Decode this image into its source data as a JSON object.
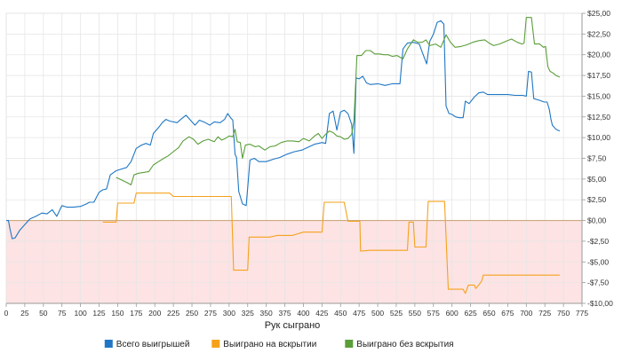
{
  "chart_data": {
    "type": "line",
    "title": "",
    "xlabel": "Рук сыграно",
    "ylabel": "",
    "xlim": [
      0,
      775
    ],
    "ylim": [
      -10,
      25
    ],
    "x_ticks": [
      "0",
      "25",
      "50",
      "75",
      "100",
      "125",
      "150",
      "175",
      "200",
      "225",
      "250",
      "275",
      "300",
      "325",
      "350",
      "375",
      "400",
      "425",
      "450",
      "475",
      "500",
      "525",
      "550",
      "575",
      "600",
      "625",
      "650",
      "675",
      "700",
      "725",
      "750",
      "775"
    ],
    "y_ticks": [
      {
        "value": 25,
        "label": "$25,00"
      },
      {
        "value": 22.5,
        "label": "$22,50"
      },
      {
        "value": 20,
        "label": "$20,00"
      },
      {
        "value": 17.5,
        "label": "$17,50"
      },
      {
        "value": 15,
        "label": "$15,00"
      },
      {
        "value": 12.5,
        "label": "$12,50"
      },
      {
        "value": 10,
        "label": "$10,00"
      },
      {
        "value": 7.5,
        "label": "$7,50"
      },
      {
        "value": 5,
        "label": "$5,00"
      },
      {
        "value": 2.5,
        "label": "$2,50"
      },
      {
        "value": 0,
        "label": "$0,00"
      },
      {
        "value": -2.5,
        "label": "-$2,50"
      },
      {
        "value": -5,
        "label": "-$5,00"
      },
      {
        "value": -7.5,
        "label": "-$7,50"
      },
      {
        "value": -10,
        "label": "-$10,00"
      }
    ],
    "grid": true,
    "negative_band": true,
    "legend_position": "bottom-center",
    "series": [
      {
        "name": "Всего выигрышей",
        "color": "#1f77c4",
        "points": [
          [
            0,
            0
          ],
          [
            3,
            0
          ],
          [
            5,
            -1
          ],
          [
            8,
            -2.2
          ],
          [
            12,
            -2.1
          ],
          [
            18,
            -1.2
          ],
          [
            25,
            -0.5
          ],
          [
            32,
            0.2
          ],
          [
            40,
            0.5
          ],
          [
            48,
            0.9
          ],
          [
            55,
            0.8
          ],
          [
            62,
            1.3
          ],
          [
            68,
            0.5
          ],
          [
            75,
            1.8
          ],
          [
            82,
            1.6
          ],
          [
            90,
            1.6
          ],
          [
            100,
            1.7
          ],
          [
            108,
            2
          ],
          [
            112,
            2.2
          ],
          [
            118,
            2.2
          ],
          [
            125,
            3.4
          ],
          [
            130,
            3.7
          ],
          [
            135,
            3.8
          ],
          [
            140,
            5.5
          ],
          [
            148,
            6
          ],
          [
            155,
            6.2
          ],
          [
            162,
            6.4
          ],
          [
            168,
            7.1
          ],
          [
            175,
            8.7
          ],
          [
            182,
            9.1
          ],
          [
            188,
            9.3
          ],
          [
            194,
            9.1
          ],
          [
            198,
            10.5
          ],
          [
            205,
            11.2
          ],
          [
            210,
            11.8
          ],
          [
            215,
            12.2
          ],
          [
            220,
            12
          ],
          [
            230,
            11.8
          ],
          [
            235,
            12.2
          ],
          [
            242,
            12.7
          ],
          [
            248,
            12.1
          ],
          [
            254,
            11.5
          ],
          [
            260,
            12.1
          ],
          [
            268,
            11.8
          ],
          [
            274,
            11.5
          ],
          [
            280,
            11.9
          ],
          [
            288,
            11.8
          ],
          [
            294,
            12.2
          ],
          [
            298,
            12.9
          ],
          [
            302,
            12.4
          ],
          [
            305,
            12.1
          ],
          [
            308,
            8
          ],
          [
            310,
            7.6
          ],
          [
            313,
            3.5
          ],
          [
            318,
            2
          ],
          [
            323,
            1.8
          ],
          [
            328,
            7.3
          ],
          [
            334,
            7.5
          ],
          [
            340,
            7.1
          ],
          [
            350,
            7.1
          ],
          [
            360,
            7.4
          ],
          [
            368,
            7.6
          ],
          [
            378,
            8
          ],
          [
            388,
            8.3
          ],
          [
            398,
            8.5
          ],
          [
            408,
            8.9
          ],
          [
            415,
            9.2
          ],
          [
            420,
            9.3
          ],
          [
            425,
            9.4
          ],
          [
            430,
            9.3
          ],
          [
            435,
            12.9
          ],
          [
            440,
            13.2
          ],
          [
            445,
            10.9
          ],
          [
            450,
            13.1
          ],
          [
            455,
            13.3
          ],
          [
            460,
            12.9
          ],
          [
            465,
            11.6
          ],
          [
            468,
            8.1
          ],
          [
            471,
            17.2
          ],
          [
            475,
            17.1
          ],
          [
            480,
            17.4
          ],
          [
            485,
            16.6
          ],
          [
            490,
            16.4
          ],
          [
            500,
            16.5
          ],
          [
            510,
            16.3
          ],
          [
            520,
            16.5
          ],
          [
            530,
            16.5
          ],
          [
            534,
            20.7
          ],
          [
            540,
            21.4
          ],
          [
            548,
            21.5
          ],
          [
            556,
            21.3
          ],
          [
            560,
            20.3
          ],
          [
            566,
            18.9
          ],
          [
            570,
            21.6
          ],
          [
            575,
            22.5
          ],
          [
            580,
            23.9
          ],
          [
            585,
            24.1
          ],
          [
            589,
            23.7
          ],
          [
            592,
            13.8
          ],
          [
            596,
            12.9
          ],
          [
            600,
            12.8
          ],
          [
            605,
            12.5
          ],
          [
            610,
            12.4
          ],
          [
            615,
            12.4
          ],
          [
            618,
            14.4
          ],
          [
            623,
            14.1
          ],
          [
            630,
            14.9
          ],
          [
            636,
            15.4
          ],
          [
            642,
            15.5
          ],
          [
            648,
            15.2
          ],
          [
            655,
            15.2
          ],
          [
            665,
            15.2
          ],
          [
            675,
            15.2
          ],
          [
            685,
            15.1
          ],
          [
            695,
            15.1
          ],
          [
            700,
            15
          ],
          [
            703,
            18
          ],
          [
            707,
            17.9
          ],
          [
            710,
            14.7
          ],
          [
            718,
            14.5
          ],
          [
            724,
            14.3
          ],
          [
            728,
            14.3
          ],
          [
            731,
            13.4
          ],
          [
            733,
            12.3
          ],
          [
            735,
            11.5
          ],
          [
            740,
            11
          ],
          [
            745,
            10.8
          ]
        ]
      },
      {
        "name": "Выиграно на вскрытии",
        "color": "#f5a21b",
        "points": [
          [
            130,
            -0.2
          ],
          [
            140,
            -0.2
          ],
          [
            148,
            -0.2
          ],
          [
            150,
            2.1
          ],
          [
            165,
            2.1
          ],
          [
            172,
            2.1
          ],
          [
            175,
            3.3
          ],
          [
            200,
            3.3
          ],
          [
            220,
            3.3
          ],
          [
            225,
            2.9
          ],
          [
            250,
            2.9
          ],
          [
            275,
            2.9
          ],
          [
            300,
            2.9
          ],
          [
            303,
            2.9
          ],
          [
            306,
            -6
          ],
          [
            320,
            -6
          ],
          [
            325,
            -6
          ],
          [
            327,
            -2
          ],
          [
            340,
            -2
          ],
          [
            355,
            -2
          ],
          [
            365,
            -1.8
          ],
          [
            385,
            -1.8
          ],
          [
            400,
            -1.4
          ],
          [
            418,
            -1.4
          ],
          [
            425,
            -1.4
          ],
          [
            428,
            2.2
          ],
          [
            440,
            2.2
          ],
          [
            455,
            2.2
          ],
          [
            460,
            -0.1
          ],
          [
            470,
            -0.1
          ],
          [
            476,
            -0.1
          ],
          [
            477,
            -3.7
          ],
          [
            490,
            -3.6
          ],
          [
            505,
            -3.6
          ],
          [
            515,
            -3.6
          ],
          [
            530,
            -3.6
          ],
          [
            540,
            -3.6
          ],
          [
            542,
            -0.2
          ],
          [
            548,
            -0.2
          ],
          [
            550,
            -3.2
          ],
          [
            558,
            -3.2
          ],
          [
            565,
            -3.2
          ],
          [
            568,
            2.3
          ],
          [
            578,
            2.3
          ],
          [
            583,
            2.3
          ],
          [
            590,
            2.3
          ],
          [
            595,
            -8.3
          ],
          [
            600,
            -8.3
          ],
          [
            610,
            -8.3
          ],
          [
            615,
            -8.3
          ],
          [
            618,
            -8.8
          ],
          [
            622,
            -7.8
          ],
          [
            630,
            -7.8
          ],
          [
            632,
            -8.2
          ],
          [
            636,
            -7.8
          ],
          [
            640,
            -7.3
          ],
          [
            642,
            -6.6
          ],
          [
            650,
            -6.6
          ],
          [
            665,
            -6.6
          ],
          [
            680,
            -6.6
          ],
          [
            700,
            -6.6
          ],
          [
            720,
            -6.6
          ],
          [
            745,
            -6.6
          ]
        ]
      },
      {
        "name": "Выиграно без вскрытия",
        "color": "#5a9e3a",
        "points": [
          [
            148,
            5.2
          ],
          [
            155,
            4.9
          ],
          [
            162,
            4.6
          ],
          [
            168,
            4.3
          ],
          [
            172,
            5.5
          ],
          [
            178,
            5.7
          ],
          [
            185,
            5.8
          ],
          [
            192,
            5.9
          ],
          [
            198,
            6.7
          ],
          [
            205,
            7.1
          ],
          [
            212,
            7.5
          ],
          [
            218,
            7.8
          ],
          [
            225,
            8.3
          ],
          [
            232,
            8.8
          ],
          [
            238,
            9.6
          ],
          [
            246,
            10.1
          ],
          [
            252,
            9.8
          ],
          [
            258,
            9.2
          ],
          [
            265,
            9.6
          ],
          [
            272,
            9.8
          ],
          [
            280,
            9.5
          ],
          [
            285,
            10.1
          ],
          [
            290,
            9.7
          ],
          [
            295,
            9.9
          ],
          [
            300,
            10.2
          ],
          [
            305,
            10.1
          ],
          [
            308,
            11
          ],
          [
            311,
            9.5
          ],
          [
            315,
            9.4
          ],
          [
            318,
            7.5
          ],
          [
            322,
            9.1
          ],
          [
            328,
            9.2
          ],
          [
            335,
            8.9
          ],
          [
            340,
            9
          ],
          [
            348,
            8.5
          ],
          [
            355,
            8.9
          ],
          [
            362,
            9
          ],
          [
            370,
            9.4
          ],
          [
            378,
            9.6
          ],
          [
            386,
            9.6
          ],
          [
            394,
            9.5
          ],
          [
            400,
            9.9
          ],
          [
            408,
            9.6
          ],
          [
            415,
            10.2
          ],
          [
            420,
            10.5
          ],
          [
            425,
            9.9
          ],
          [
            430,
            10.4
          ],
          [
            435,
            10.8
          ],
          [
            440,
            10.6
          ],
          [
            445,
            10.2
          ],
          [
            450,
            10.1
          ],
          [
            455,
            9.8
          ],
          [
            460,
            9.9
          ],
          [
            465,
            10.4
          ],
          [
            468,
            12
          ],
          [
            472,
            19.9
          ],
          [
            478,
            19.9
          ],
          [
            484,
            20.5
          ],
          [
            490,
            20.5
          ],
          [
            496,
            20.1
          ],
          [
            502,
            20.1
          ],
          [
            508,
            20
          ],
          [
            514,
            20
          ],
          [
            520,
            19.8
          ],
          [
            526,
            19.9
          ],
          [
            534,
            19.5
          ],
          [
            540,
            20.7
          ],
          [
            548,
            21.8
          ],
          [
            554,
            21.5
          ],
          [
            560,
            21.5
          ],
          [
            565,
            21.8
          ],
          [
            570,
            21.1
          ],
          [
            578,
            21.3
          ],
          [
            585,
            20.9
          ],
          [
            592,
            22.4
          ],
          [
            598,
            21.5
          ],
          [
            604,
            20.9
          ],
          [
            612,
            21
          ],
          [
            620,
            21.2
          ],
          [
            628,
            21.5
          ],
          [
            636,
            21.7
          ],
          [
            644,
            21.8
          ],
          [
            650,
            21.4
          ],
          [
            656,
            21.1
          ],
          [
            664,
            21.3
          ],
          [
            672,
            21.6
          ],
          [
            680,
            21.9
          ],
          [
            688,
            21.5
          ],
          [
            694,
            21.3
          ],
          [
            697,
            21.4
          ],
          [
            700,
            24.5
          ],
          [
            707,
            24.5
          ],
          [
            711,
            21.3
          ],
          [
            718,
            21.3
          ],
          [
            723,
            20.9
          ],
          [
            726,
            21
          ],
          [
            729,
            18.6
          ],
          [
            732,
            18
          ],
          [
            736,
            17.8
          ],
          [
            740,
            17.5
          ],
          [
            745,
            17.3
          ]
        ]
      }
    ]
  }
}
